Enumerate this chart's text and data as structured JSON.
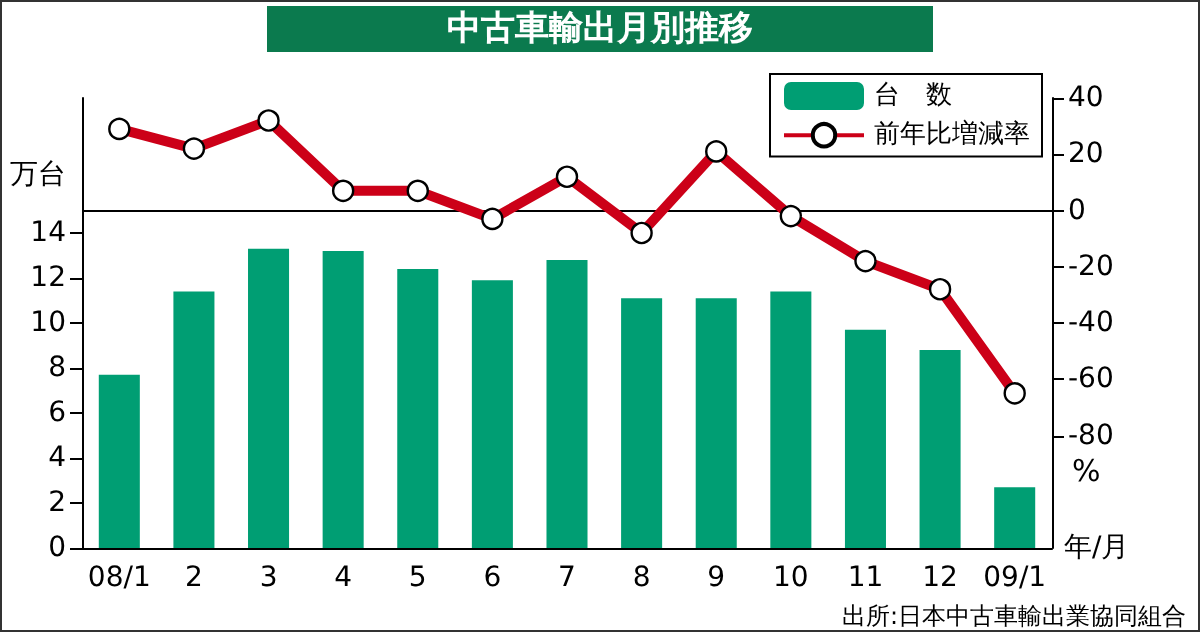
{
  "chart_data": {
    "type": "bar",
    "title": "中古車輸出月別推移",
    "xlabel": "年/月",
    "ylabel": "万台",
    "y2label": "%",
    "categories": [
      "08/1",
      "2",
      "3",
      "4",
      "5",
      "6",
      "7",
      "8",
      "9",
      "10",
      "11",
      "12",
      "09/1"
    ],
    "series": [
      {
        "name": "台　数",
        "color": "#009e73",
        "values": [
          7.7,
          11.4,
          13.3,
          13.2,
          12.4,
          11.9,
          12.8,
          11.1,
          11.1,
          11.4,
          9.7,
          8.8,
          2.7
        ]
      },
      {
        "name": "前年比増減率",
        "type": "line",
        "axis": "y2",
        "color": "#cc0018",
        "marker": "circle",
        "values": [
          29,
          22,
          32,
          7,
          7,
          -3,
          12,
          -8,
          21,
          -2,
          -18,
          -28,
          -65
        ]
      }
    ],
    "ylim": [
      0,
      20
    ],
    "yticks": [
      0,
      2,
      4,
      6,
      8,
      10,
      12,
      14
    ],
    "y2lim": [
      -120,
      40
    ],
    "y2ticks": [
      -80,
      -60,
      -40,
      -20,
      0,
      20,
      40
    ],
    "ref_lines": [
      {
        "axis": "y2",
        "value": 0,
        "color": "#000000"
      }
    ],
    "legend": "top right",
    "grid": false,
    "annotations": [
      "出所:日本中古車輸出業協同組合"
    ]
  }
}
